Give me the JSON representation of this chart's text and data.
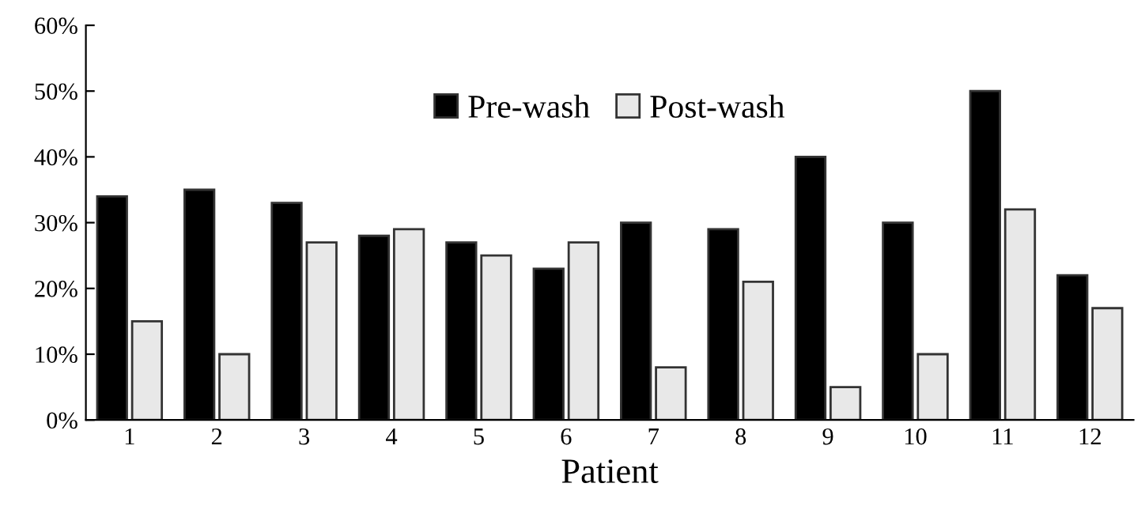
{
  "chart_data": {
    "type": "bar",
    "xlabel": "Patient",
    "categories": [
      "1",
      "2",
      "3",
      "4",
      "5",
      "6",
      "7",
      "8",
      "9",
      "10",
      "11",
      "12"
    ],
    "series": [
      {
        "name": "Pre-wash",
        "color": "#000000",
        "values": [
          34,
          35,
          33,
          28,
          27,
          23,
          30,
          29,
          40,
          30,
          50,
          22
        ]
      },
      {
        "name": "Post-wash",
        "color": "#e8e8e8",
        "values": [
          15,
          10,
          27,
          29,
          25,
          27,
          8,
          21,
          5,
          10,
          32,
          17
        ]
      }
    ],
    "ylim": [
      0,
      60
    ],
    "yticks": [
      {
        "value": 0,
        "label": "0%"
      },
      {
        "value": 10,
        "label": "10%"
      },
      {
        "value": 20,
        "label": "20%"
      },
      {
        "value": 30,
        "label": "30%"
      },
      {
        "value": 40,
        "label": "40%"
      },
      {
        "value": 50,
        "label": "50%"
      },
      {
        "value": 60,
        "label": "60%"
      }
    ],
    "grid": false,
    "legend": "top"
  }
}
